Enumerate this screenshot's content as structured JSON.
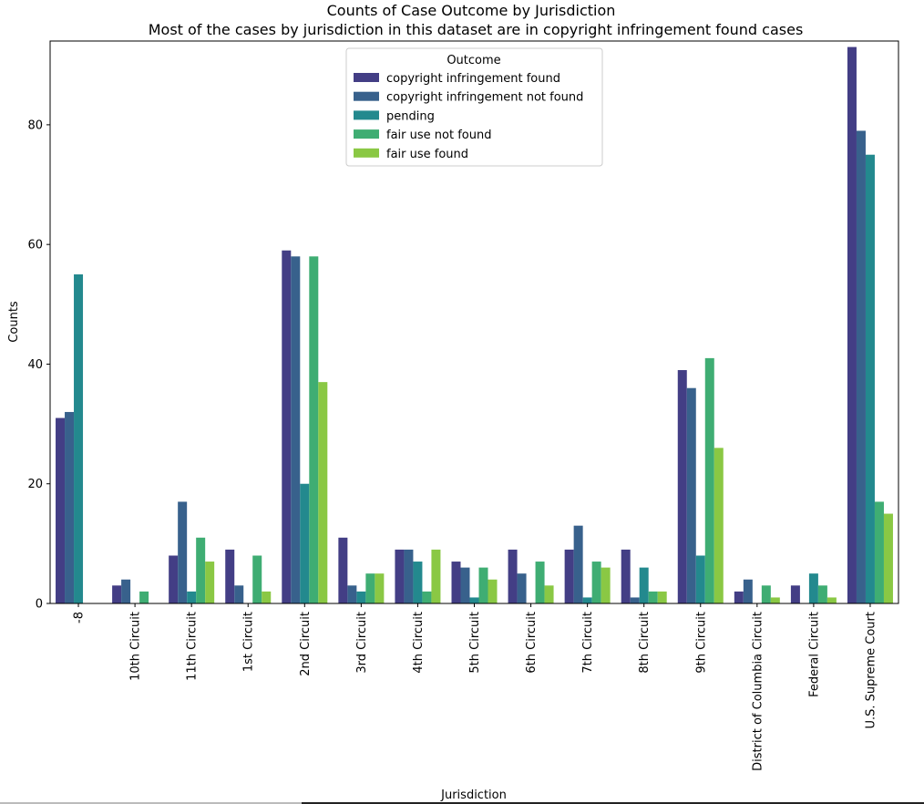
{
  "chart_data": {
    "type": "bar",
    "title": "Counts of Case Outcome by Jurisdiction",
    "subtitle": "Most of the cases by jurisdiction in this dataset are in copyright infringement found cases",
    "xlabel": "Jurisdiction",
    "ylabel": "Counts",
    "ylim": [
      0,
      94
    ],
    "yticks": [
      0,
      20,
      40,
      60,
      80
    ],
    "legend_title": "Outcome",
    "legend_position": "upper-center",
    "categories": [
      "-8",
      "10th Circuit",
      "11th Circuit",
      "1st Circuit",
      "2nd Circuit",
      "3rd Circuit",
      "4th Circuit",
      "5th Circuit",
      "6th Circuit",
      "7th Circuit",
      "8th Circuit",
      "9th Circuit",
      "District of Columbia Circuit",
      "Federal Circuit",
      "U.S. Supreme Court"
    ],
    "series": [
      {
        "name": "copyright infringement found",
        "color": "#433e85",
        "values": [
          31,
          3,
          8,
          9,
          59,
          11,
          9,
          7,
          9,
          9,
          9,
          39,
          2,
          3,
          93
        ]
      },
      {
        "name": "copyright infringement not found",
        "color": "#38618c",
        "values": [
          32,
          4,
          17,
          3,
          58,
          3,
          9,
          6,
          5,
          13,
          1,
          36,
          4,
          0,
          79
        ]
      },
      {
        "name": "pending",
        "color": "#23898e",
        "values": [
          55,
          0,
          2,
          0,
          20,
          2,
          7,
          1,
          0,
          1,
          6,
          8,
          0,
          5,
          75
        ]
      },
      {
        "name": "fair use not found",
        "color": "#3fad73",
        "values": [
          0,
          2,
          11,
          8,
          58,
          5,
          2,
          6,
          7,
          7,
          2,
          41,
          3,
          3,
          17
        ]
      },
      {
        "name": "fair use found",
        "color": "#8ac844",
        "values": [
          0,
          0,
          7,
          2,
          37,
          5,
          9,
          4,
          3,
          6,
          2,
          26,
          1,
          1,
          15
        ]
      }
    ]
  }
}
